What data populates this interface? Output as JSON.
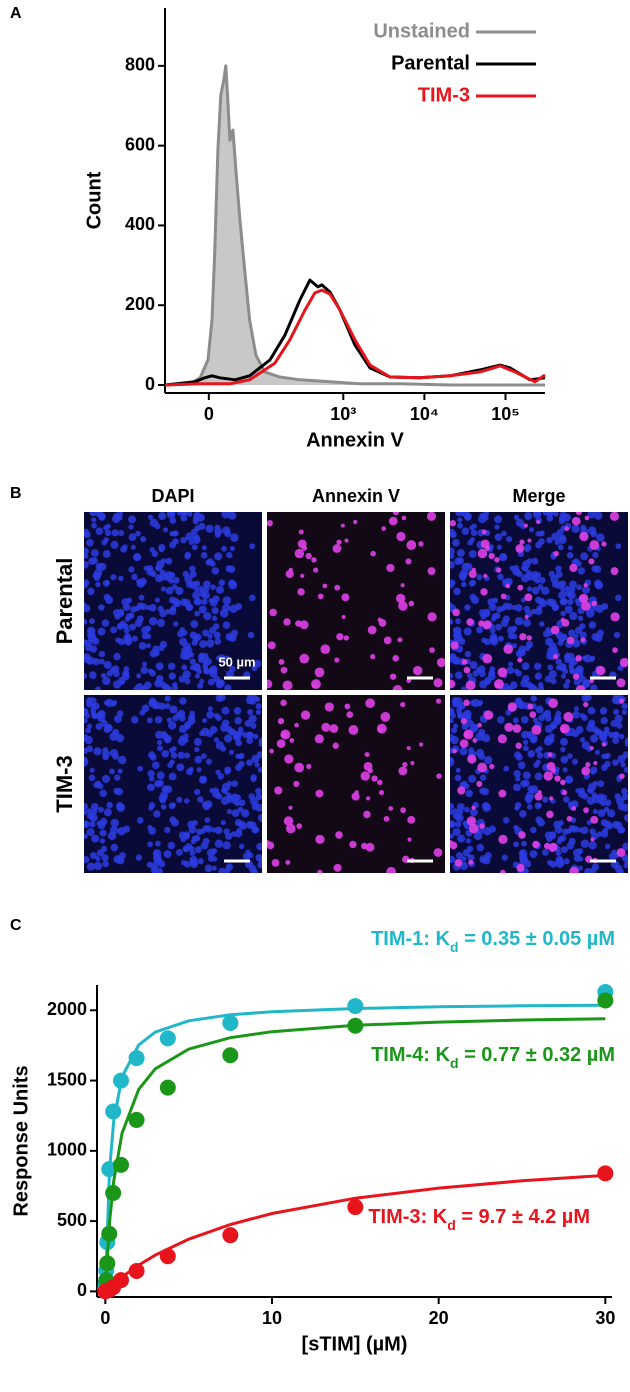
{
  "chart_data": [
    {
      "type": "line",
      "panel": "A",
      "xlabel": "Annexin V",
      "ylabel": "Count",
      "xscale": "arcsinh",
      "xlim": [
        -70,
        307000
      ],
      "ylim": [
        -20,
        945
      ],
      "xticks": [
        0,
        {
          "value": 1000,
          "label": "10³"
        },
        {
          "value": 10000,
          "label": "10⁴"
        },
        {
          "value": 100000,
          "label": "10⁵"
        }
      ],
      "yticks": [
        0,
        200,
        400,
        600,
        800
      ],
      "legend": "upper right",
      "series": [
        {
          "name": "Unstained",
          "color": "#8c8c8c",
          "fill": "#c8c8c8",
          "x": [
            -70,
            -25,
            -11,
            -1,
            4,
            7.5,
            11.4,
            15.3,
            19.3,
            22.1,
            24.9,
            27.9,
            32.4,
            37.3,
            44,
            53,
            63,
            78,
            103,
            162,
            290,
            686,
            1606,
            5016,
            20800,
            307000
          ],
          "values": [
            0,
            3,
            18,
            63,
            163,
            338,
            589,
            727,
            764,
            800,
            714,
            614,
            639,
            539,
            414,
            288,
            163,
            75,
            33,
            20,
            13,
            8,
            3,
            3,
            0,
            0
          ]
        },
        {
          "name": "Parental",
          "color": "#000000",
          "x": [
            -70,
            -18,
            -5,
            4,
            14,
            36,
            63,
            121,
            188,
            290,
            387,
            486,
            545,
            686,
            907,
            1393,
            2133,
            3763,
            8810,
            20800,
            48600,
            85800,
            113700,
            200600,
            307000
          ],
          "values": [
            0,
            8,
            18,
            23,
            18,
            13,
            23,
            63,
            125,
            213,
            263,
            246,
            251,
            233,
            188,
            100,
            43,
            20,
            18,
            23,
            38,
            50,
            43,
            13,
            18
          ]
        },
        {
          "name": "TIM-3",
          "color": "#e8141c",
          "x": [
            -70,
            -11,
            28,
            63,
            140,
            217,
            336,
            446,
            545,
            686,
            907,
            1393,
            2133,
            3763,
            8810,
            20800,
            48600,
            85800,
            131000,
            231000,
            307000
          ],
          "values": [
            0,
            3,
            3,
            13,
            55,
            113,
            188,
            231,
            238,
            228,
            188,
            113,
            50,
            20,
            18,
            23,
            33,
            48,
            33,
            8,
            25
          ]
        }
      ]
    },
    {
      "type": "scatter",
      "panel": "C",
      "xlabel": "[sTIM] (µM)",
      "ylabel": "Response Units",
      "xlim": [
        -0.5,
        30.4
      ],
      "ylim": [
        -40,
        2180
      ],
      "xticks": [
        0,
        10,
        20,
        30
      ],
      "yticks": [
        0,
        500,
        1000,
        1500,
        2000
      ],
      "fit_x": [
        0,
        0.25,
        0.5,
        1,
        2,
        3,
        5,
        7.5,
        10,
        15,
        20,
        25,
        30
      ],
      "series": [
        {
          "name_parts": [
            "TIM-1: K",
            "d",
            " = 0.35 ± 0.05 µM"
          ],
          "color": "#20b8c8",
          "x": [
            0,
            0.029,
            0.059,
            0.117,
            0.234,
            0.47,
            0.94,
            1.875,
            3.75,
            7.5,
            15,
            30
          ],
          "values": [
            20,
            60,
            150,
            350,
            870,
            1280,
            1500,
            1660,
            1800,
            1910,
            2030,
            2130
          ],
          "fit": [
            0,
            858,
            1212,
            1526,
            1753,
            1845,
            1925,
            1968,
            1990,
            2013,
            2025,
            2032,
            2036
          ]
        },
        {
          "name_parts": [
            "TIM-4: K",
            "d",
            " = 0.77 ± 0.32 µM"
          ],
          "color": "#1a9618",
          "x": [
            0.059,
            0.117,
            0.234,
            0.47,
            0.94,
            1.875,
            3.75,
            7.5,
            15,
            30
          ],
          "values": [
            80,
            200,
            410,
            700,
            900,
            1220,
            1450,
            1680,
            1890,
            2070
          ],
          "fit": [
            0,
            488,
            784,
            1124,
            1437,
            1584,
            1724,
            1805,
            1848,
            1893,
            1916,
            1931,
            1940
          ]
        },
        {
          "name_parts": [
            "TIM-3: K",
            "d",
            " = 9.7 ± 4.2 µM"
          ],
          "color": "#e8141c",
          "x": [
            0,
            0.234,
            0.47,
            0.94,
            1.875,
            3.75,
            7.5,
            15,
            30
          ],
          "values": [
            0,
            10,
            30,
            80,
            145,
            250,
            400,
            600,
            840
          ],
          "fit": [
            0,
            27,
            54,
            102,
            187,
            258,
            371,
            476,
            554,
            663,
            735,
            787,
            825
          ]
        }
      ]
    }
  ],
  "image_panel": {
    "panel": "B",
    "columns": [
      "DAPI",
      "Annexin V",
      "Merge"
    ],
    "rows": [
      "Parental",
      "TIM-3"
    ],
    "scale_bar": "50 µm"
  }
}
